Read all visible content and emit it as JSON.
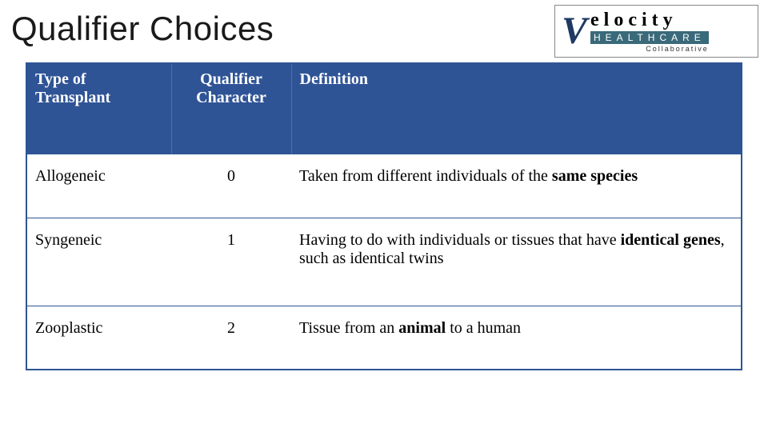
{
  "title": "Qualifier Choices",
  "logo": {
    "brand_top": "elocity",
    "brand_mid": "HEALTHCARE",
    "brand_bottom": "Collaborative"
  },
  "table": {
    "headers": {
      "type": "Type of Transplant",
      "qualifier": "Qualifier Character",
      "definition": "Definition"
    },
    "rows": [
      {
        "type": "Allogeneic",
        "qualifier": "0",
        "def_pre": "Taken from different individuals of the ",
        "def_bold": "same species",
        "def_post": ""
      },
      {
        "type": "Syngeneic",
        "qualifier": "1",
        "def_pre": "Having to do with individuals or tissues that have ",
        "def_bold": "identical genes",
        "def_post": ", such as identical twins"
      },
      {
        "type": "Zooplastic",
        "qualifier": "2",
        "def_pre": "Tissue from an ",
        "def_bold": "animal",
        "def_post": " to a human"
      }
    ]
  },
  "colors": {
    "header_bg": "#2f5496",
    "header_text": "#ffffff",
    "border": "#2f5496",
    "body_text": "#000000",
    "title_text": "#1a1a1a"
  }
}
